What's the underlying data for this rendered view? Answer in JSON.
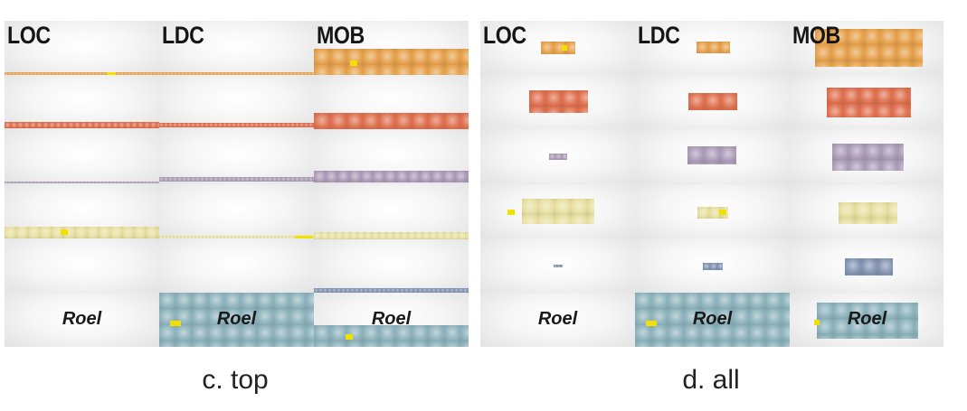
{
  "panels": [
    {
      "id": "top",
      "caption": "c. top",
      "columns": [
        "LOC",
        "LDC",
        "MOB"
      ],
      "last_row_label": "Roel"
    },
    {
      "id": "all",
      "caption": "d. all",
      "columns": [
        "LOC",
        "LDC",
        "MOB"
      ],
      "last_row_label": "Roel"
    }
  ],
  "colors": {
    "orange": "#e6a24e",
    "red": "#df7150",
    "purple": "#ac9db8",
    "yellow": "#e8e0a2",
    "blue": "#8494b2",
    "teal": "#8fb4bd",
    "highlight": "#f2e000"
  }
}
